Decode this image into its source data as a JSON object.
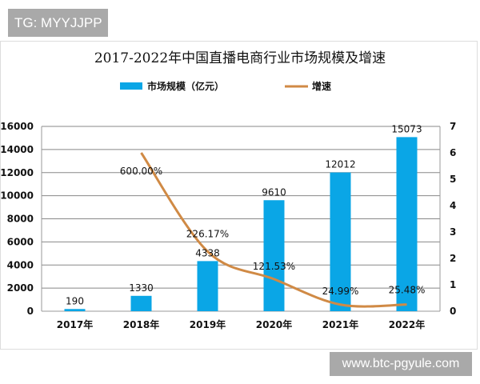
{
  "watermarks": {
    "top": "TG: MYYJJPP",
    "bottom": "www.btc-pgyule.com"
  },
  "chart_data": {
    "type": "bar+line",
    "title": "2017-2022年中国直播电商行业市场规模及增速",
    "categories": [
      "2017年",
      "2018年",
      "2019年",
      "2020年",
      "2021年",
      "2022年"
    ],
    "series": [
      {
        "name": "市场规模（亿元）",
        "type": "bar",
        "axis": "left",
        "color": "#0aa6e6",
        "values": [
          190,
          1330,
          4338,
          9610,
          12012,
          15073
        ],
        "labels": [
          "190",
          "1330",
          "4338",
          "9610",
          "12012",
          "15073"
        ]
      },
      {
        "name": "增速",
        "type": "line",
        "axis": "right",
        "color": "#d08a45",
        "smooth": true,
        "values": [
          null,
          6.0,
          2.2617,
          1.2153,
          0.2499,
          0.2548
        ],
        "labels": [
          "",
          "600.00%",
          "226.17%",
          "121.53%",
          "24.99%",
          "25.48%"
        ]
      }
    ],
    "y_left": {
      "min": 0,
      "max": 16000,
      "ticks": [
        0,
        2000,
        4000,
        6000,
        8000,
        10000,
        12000,
        14000,
        16000
      ]
    },
    "y_right": {
      "min": 0,
      "max": 7,
      "ticks": [
        0,
        1,
        2,
        3,
        4,
        5,
        6,
        7
      ]
    },
    "grid": true,
    "legend": "top-center"
  }
}
